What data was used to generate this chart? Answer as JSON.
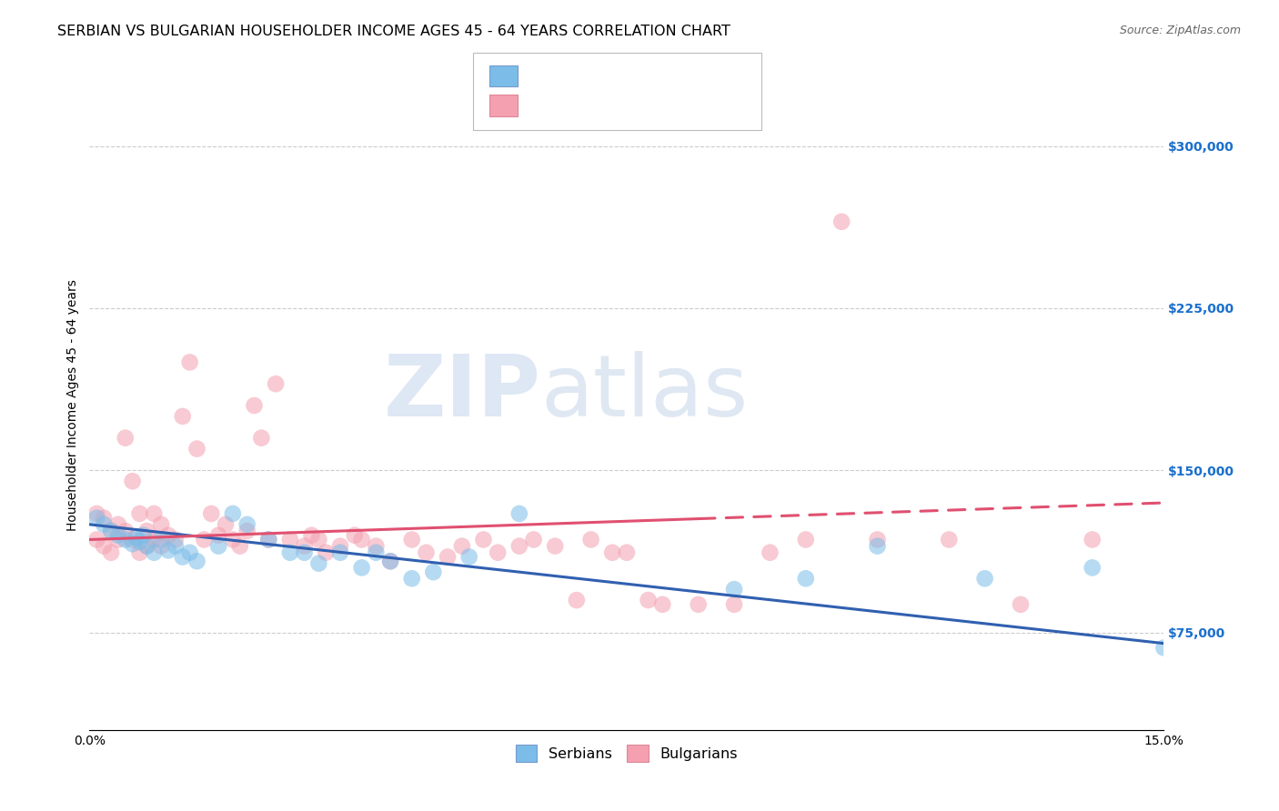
{
  "title": "SERBIAN VS BULGARIAN HOUSEHOLDER INCOME AGES 45 - 64 YEARS CORRELATION CHART",
  "source": "Source: ZipAtlas.com",
  "ylabel": "Householder Income Ages 45 - 64 years",
  "y_tick_labels": [
    "$75,000",
    "$150,000",
    "$225,000",
    "$300,000"
  ],
  "y_tick_values": [
    75000,
    150000,
    225000,
    300000
  ],
  "y_lim": [
    30000,
    330000
  ],
  "x_lim": [
    0.0,
    0.15
  ],
  "serbian_color": "#7bbde8",
  "bulgarian_color": "#f4a0b0",
  "serbian_line_color": "#3060b0",
  "bulgarian_line_color": "#e05070",
  "watermark_zip": "ZIP",
  "watermark_atlas": "atlas",
  "background_color": "#ffffff",
  "title_fontsize": 11.5,
  "axis_label_fontsize": 10,
  "tick_fontsize": 10,
  "legend_fontsize": 12,
  "serbians_x": [
    0.001,
    0.002,
    0.003,
    0.004,
    0.005,
    0.006,
    0.0065,
    0.007,
    0.0075,
    0.008,
    0.009,
    0.01,
    0.011,
    0.012,
    0.013,
    0.014,
    0.015,
    0.018,
    0.02,
    0.022,
    0.025,
    0.028,
    0.03,
    0.032,
    0.035,
    0.038,
    0.04,
    0.042,
    0.045,
    0.048,
    0.053,
    0.06,
    0.09,
    0.1,
    0.11,
    0.125,
    0.14,
    0.15
  ],
  "serbians_y": [
    128000,
    125000,
    122000,
    120000,
    118000,
    116000,
    119000,
    117000,
    120000,
    115000,
    112000,
    118000,
    113000,
    115000,
    110000,
    112000,
    108000,
    115000,
    130000,
    125000,
    118000,
    112000,
    112000,
    107000,
    112000,
    105000,
    112000,
    108000,
    100000,
    103000,
    110000,
    130000,
    95000,
    100000,
    115000,
    100000,
    105000,
    68000
  ],
  "bulgarians_x": [
    0.001,
    0.001,
    0.002,
    0.002,
    0.003,
    0.003,
    0.004,
    0.004,
    0.005,
    0.005,
    0.006,
    0.006,
    0.007,
    0.007,
    0.008,
    0.008,
    0.009,
    0.009,
    0.01,
    0.01,
    0.011,
    0.012,
    0.013,
    0.014,
    0.015,
    0.016,
    0.017,
    0.018,
    0.019,
    0.02,
    0.021,
    0.022,
    0.023,
    0.024,
    0.025,
    0.026,
    0.028,
    0.03,
    0.031,
    0.032,
    0.033,
    0.035,
    0.037,
    0.038,
    0.04,
    0.042,
    0.045,
    0.047,
    0.05,
    0.052,
    0.055,
    0.057,
    0.06,
    0.062,
    0.065,
    0.068,
    0.07,
    0.073,
    0.075,
    0.078,
    0.08,
    0.085,
    0.09,
    0.095,
    0.1,
    0.105,
    0.11,
    0.12,
    0.13,
    0.14
  ],
  "bulgarians_y": [
    130000,
    118000,
    128000,
    115000,
    122000,
    112000,
    125000,
    118000,
    165000,
    122000,
    145000,
    118000,
    130000,
    112000,
    122000,
    115000,
    130000,
    118000,
    115000,
    125000,
    120000,
    118000,
    175000,
    200000,
    160000,
    118000,
    130000,
    120000,
    125000,
    118000,
    115000,
    122000,
    180000,
    165000,
    118000,
    190000,
    118000,
    115000,
    120000,
    118000,
    112000,
    115000,
    120000,
    118000,
    115000,
    108000,
    118000,
    112000,
    110000,
    115000,
    118000,
    112000,
    115000,
    118000,
    115000,
    90000,
    118000,
    112000,
    112000,
    90000,
    88000,
    88000,
    88000,
    112000,
    118000,
    265000,
    118000,
    118000,
    88000,
    118000
  ]
}
